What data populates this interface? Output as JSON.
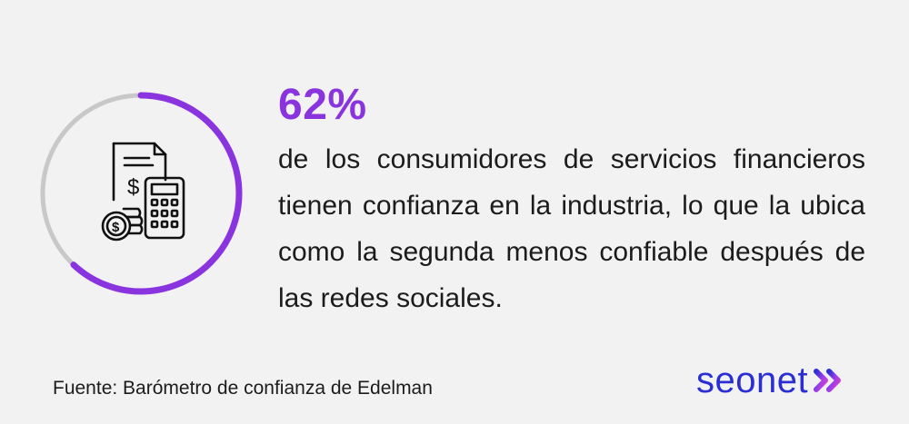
{
  "stat": {
    "value": "62%",
    "progress": 0.62,
    "accent_color": "#8a34e0",
    "track_color": "#c8c8c8"
  },
  "description": "de los consumidores de servicios financieros tienen confianza en la industria, lo que la ubica como la segunda menos confiable después de las redes sociales.",
  "icon": "finance-calculator-coins-icon",
  "source": "Fuente: Barómetro de confianza de Edelman",
  "brand": {
    "name": "seonet",
    "color": "#2b2fd3",
    "logo_icon": "double-chevron-right-icon"
  }
}
